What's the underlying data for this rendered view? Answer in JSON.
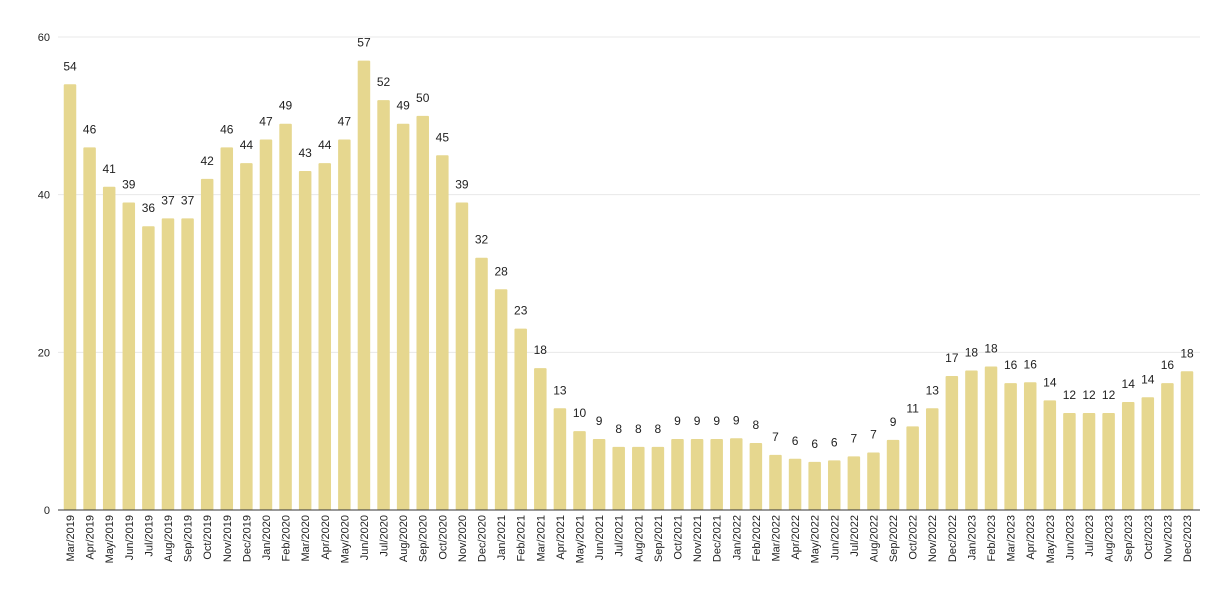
{
  "chart_data": {
    "type": "bar",
    "title": "",
    "xlabel": "",
    "ylabel": "",
    "ylim": [
      0,
      60
    ],
    "yticks": [
      0,
      20,
      40,
      60
    ],
    "grid": true,
    "bar_color": "#e6d78f",
    "categories": [
      "Mar/2019",
      "Apr/2019",
      "May/2019",
      "Jun/2019",
      "Jul/2019",
      "Aug/2019",
      "Sep/2019",
      "Oct/2019",
      "Nov/2019",
      "Dec/2019",
      "Jan/2020",
      "Feb/2020",
      "Mar/2020",
      "Apr/2020",
      "May/2020",
      "Jun/2020",
      "Jul/2020",
      "Aug/2020",
      "Sep/2020",
      "Oct/2020",
      "Nov/2020",
      "Dec/2020",
      "Jan/2021",
      "Feb/2021",
      "Mar/2021",
      "Apr/2021",
      "May/2021",
      "Jun/2021",
      "Jul/2021",
      "Aug/2021",
      "Sep/2021",
      "Oct/2021",
      "Nov/2021",
      "Dec/2021",
      "Jan/2022",
      "Feb/2022",
      "Mar/2022",
      "Apr/2022",
      "May/2022",
      "Jun/2022",
      "Jul/2022",
      "Aug/2022",
      "Sep/2022",
      "Oct/2022",
      "Nov/2022",
      "Dec/2022",
      "Jan/2023",
      "Feb/2023",
      "Mar/2023",
      "Apr/2023",
      "May/2023",
      "Jun/2023",
      "Jul/2023",
      "Aug/2023",
      "Sep/2023",
      "Oct/2023",
      "Nov/2023",
      "Dec/2023"
    ],
    "values": [
      54,
      46,
      41,
      39,
      36,
      37,
      37,
      42,
      46,
      44,
      47,
      49,
      43,
      44,
      47,
      57,
      52,
      49,
      50,
      45,
      39,
      32,
      28,
      23,
      18,
      12.9,
      10,
      9,
      8,
      8,
      8,
      9,
      9,
      9,
      9.1,
      8.5,
      7,
      6.5,
      6.1,
      6.3,
      6.8,
      7.3,
      8.9,
      10.6,
      12.9,
      17,
      17.7,
      18.2,
      16.1,
      16.2,
      13.9,
      12.3,
      12.3,
      12.3,
      13.7,
      14.3,
      16.1,
      17.6
    ],
    "data_labels": [
      "54",
      "46",
      "41",
      "39",
      "36",
      "37",
      "37",
      "42",
      "46",
      "44",
      "47",
      "49",
      "43",
      "44",
      "47",
      "57",
      "52",
      "49",
      "50",
      "45",
      "39",
      "32",
      "28",
      "23",
      "18",
      "13",
      "10",
      "9",
      "8",
      "8",
      "8",
      "9",
      "9",
      "9",
      "9",
      "8",
      "7",
      "6",
      "6",
      "6",
      "7",
      "7",
      "9",
      "11",
      "13",
      "17",
      "18",
      "18",
      "16",
      "16",
      "14",
      "12",
      "12",
      "12",
      "14",
      "14",
      "16",
      "18"
    ]
  }
}
